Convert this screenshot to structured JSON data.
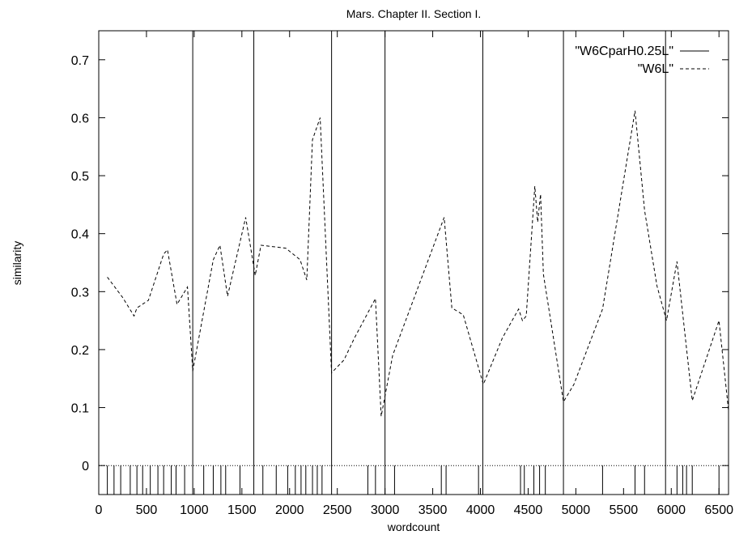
{
  "chart_data": {
    "type": "line",
    "title": "Mars. Chapter II. Section I.",
    "xlabel": "wordcount",
    "ylabel": "similarity",
    "xlim": [
      0,
      6600
    ],
    "ylim": [
      -0.05,
      0.75
    ],
    "x_ticks": [
      0,
      500,
      1000,
      1500,
      2000,
      2500,
      3000,
      3500,
      4000,
      4500,
      5000,
      5500,
      6000,
      6500
    ],
    "y_ticks": [
      0,
      0.1,
      0.2,
      0.3,
      0.4,
      0.5,
      0.6,
      0.7
    ],
    "y_tick_labels": [
      "0",
      "0.1",
      "0.2",
      "0.3",
      "0.4",
      "0.5",
      "0.6",
      "0.7"
    ],
    "grid": false,
    "legend_position": "top-right",
    "series": [
      {
        "name": "\"W6CparH0.25L\"",
        "style": "solid",
        "boundaries": [
          985,
          1625,
          2440,
          3000,
          4025,
          4870,
          5940
        ],
        "short_ticks": [
          90,
          160,
          230,
          330,
          400,
          460,
          540,
          620,
          680,
          760,
          810,
          900,
          1100,
          1200,
          1280,
          1330,
          1480,
          1720,
          1860,
          1980,
          2060,
          2120,
          2170,
          2240,
          2290,
          2340,
          2820,
          2900,
          3100,
          3590,
          3640,
          3980,
          4420,
          4460,
          4560,
          4620,
          4680,
          5280,
          5620,
          5720,
          6060,
          6120,
          6160,
          6220,
          6500,
          6600
        ]
      },
      {
        "name": "\"W6L\"",
        "style": "dashed",
        "x": [
          90,
          250,
          370,
          400,
          520,
          680,
          720,
          820,
          930,
          985,
          1200,
          1270,
          1350,
          1540,
          1640,
          1700,
          1960,
          2110,
          2180,
          2240,
          2320,
          2440,
          2570,
          2680,
          2900,
          2960,
          3080,
          3620,
          3700,
          3820,
          4030,
          4230,
          4400,
          4440,
          4480,
          4570,
          4600,
          4630,
          4660,
          4870,
          4980,
          5280,
          5620,
          5720,
          5850,
          5950,
          6060,
          6220,
          6500,
          6600
        ],
        "y": [
          0.325,
          0.29,
          0.258,
          0.272,
          0.285,
          0.365,
          0.372,
          0.278,
          0.308,
          0.163,
          0.355,
          0.38,
          0.292,
          0.428,
          0.328,
          0.38,
          0.375,
          0.355,
          0.32,
          0.562,
          0.6,
          0.16,
          0.182,
          0.22,
          0.288,
          0.085,
          0.19,
          0.428,
          0.272,
          0.26,
          0.14,
          0.22,
          0.27,
          0.25,
          0.258,
          0.482,
          0.42,
          0.468,
          0.33,
          0.11,
          0.14,
          0.27,
          0.612,
          0.44,
          0.31,
          0.25,
          0.352,
          0.112,
          0.25,
          0.095
        ]
      }
    ]
  }
}
